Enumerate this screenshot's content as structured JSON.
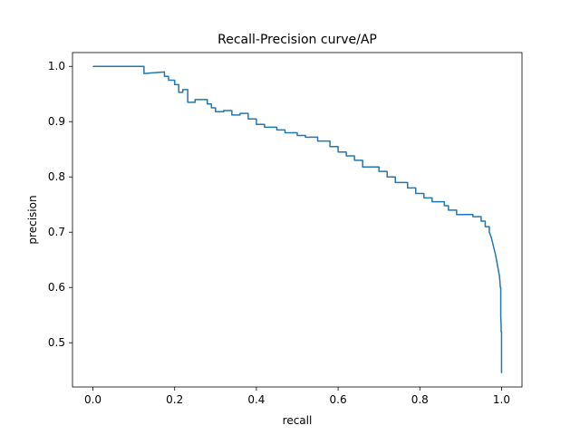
{
  "chart_data": {
    "type": "line",
    "title": "Recall-Precision curve/AP",
    "xlabel": "recall",
    "ylabel": "precision",
    "xlim": [
      -0.05,
      1.05
    ],
    "ylim": [
      0.42,
      1.025
    ],
    "xticks": [
      0.0,
      0.2,
      0.4,
      0.6,
      0.8,
      1.0
    ],
    "xtick_labels": [
      "0.0",
      "0.2",
      "0.4",
      "0.6",
      "0.8",
      "1.0"
    ],
    "yticks": [
      0.5,
      0.6,
      0.7,
      0.8,
      0.9,
      1.0
    ],
    "ytick_labels": [
      "0.5",
      "0.6",
      "0.7",
      "0.8",
      "0.9",
      "1.0"
    ],
    "grid": false,
    "line_color": "#1f77b4",
    "series": [
      {
        "x": [
          0.0,
          0.125,
          0.125,
          0.175,
          0.175,
          0.185,
          0.185,
          0.2,
          0.2,
          0.21,
          0.21,
          0.22,
          0.22,
          0.232,
          0.232,
          0.25,
          0.25,
          0.28,
          0.28,
          0.29,
          0.29,
          0.3,
          0.3,
          0.32,
          0.32,
          0.34,
          0.34,
          0.36,
          0.36,
          0.38,
          0.38,
          0.4,
          0.4,
          0.42,
          0.42,
          0.45,
          0.45,
          0.47,
          0.47,
          0.5,
          0.5,
          0.52,
          0.52,
          0.55,
          0.55,
          0.58,
          0.58,
          0.6,
          0.6,
          0.62,
          0.62,
          0.64,
          0.64,
          0.66,
          0.66,
          0.7,
          0.7,
          0.72,
          0.72,
          0.74,
          0.74,
          0.77,
          0.77,
          0.79,
          0.79,
          0.81,
          0.81,
          0.83,
          0.83,
          0.86,
          0.86,
          0.87,
          0.87,
          0.89,
          0.89,
          0.93,
          0.93,
          0.95,
          0.95,
          0.96,
          0.96,
          0.97,
          0.97,
          0.975,
          0.98,
          0.985,
          0.99,
          0.995,
          0.997,
          0.998,
          0.998,
          0.999,
          0.999,
          1.0,
          1.0
        ],
        "y": [
          1.0,
          1.0,
          0.987,
          0.99,
          0.982,
          0.982,
          0.975,
          0.975,
          0.967,
          0.967,
          0.953,
          0.953,
          0.958,
          0.958,
          0.935,
          0.935,
          0.94,
          0.94,
          0.932,
          0.932,
          0.925,
          0.925,
          0.918,
          0.918,
          0.92,
          0.92,
          0.912,
          0.912,
          0.915,
          0.915,
          0.905,
          0.905,
          0.895,
          0.895,
          0.89,
          0.89,
          0.885,
          0.885,
          0.88,
          0.88,
          0.875,
          0.875,
          0.872,
          0.872,
          0.865,
          0.865,
          0.855,
          0.855,
          0.845,
          0.845,
          0.838,
          0.838,
          0.83,
          0.83,
          0.818,
          0.818,
          0.81,
          0.81,
          0.8,
          0.8,
          0.79,
          0.79,
          0.78,
          0.78,
          0.77,
          0.77,
          0.762,
          0.762,
          0.755,
          0.755,
          0.748,
          0.748,
          0.74,
          0.74,
          0.732,
          0.732,
          0.728,
          0.728,
          0.72,
          0.72,
          0.71,
          0.71,
          0.7,
          0.69,
          0.675,
          0.66,
          0.64,
          0.62,
          0.6,
          0.6,
          0.55,
          0.53,
          0.52,
          0.52,
          0.445
        ]
      }
    ]
  }
}
